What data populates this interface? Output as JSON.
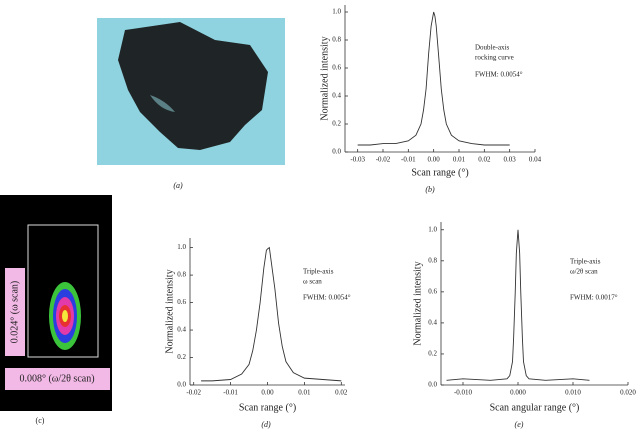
{
  "panels": {
    "a": {
      "label": "(a)"
    },
    "c": {
      "label": "(c)",
      "omega": "0.024° (ω scan)",
      "omega2theta": "0.008° (ω/2θ scan)"
    }
  },
  "chart_data": [
    {
      "type": "line",
      "label": "(b)",
      "xlabel": "Scan range (°)",
      "ylabel": "Normalized intensity",
      "notes": [
        "Double-axis",
        "rocking curve",
        "FWHM: 0.0054°"
      ],
      "color": "#333333",
      "xlim": [
        -0.035,
        0.04
      ],
      "ylim": [
        0,
        1.05
      ],
      "xticks": [
        {
          "value": -0.03,
          "label": "-0.03"
        },
        {
          "value": -0.02,
          "label": "-0.02"
        },
        {
          "value": -0.01,
          "label": "-0.01"
        },
        {
          "value": 0,
          "label": "0.00"
        },
        {
          "value": 0.01,
          "label": "0.01"
        },
        {
          "value": 0.02,
          "label": "0.02"
        },
        {
          "value": 0.03,
          "label": "0.03"
        },
        {
          "value": 0.04,
          "label": "0.04"
        }
      ],
      "yticks": [
        {
          "value": 0,
          "label": "0.0"
        },
        {
          "value": 0.2,
          "label": "0.2"
        },
        {
          "value": 0.4,
          "label": "0.4"
        },
        {
          "value": 0.6,
          "label": "0.6"
        },
        {
          "value": 0.8,
          "label": "0.8"
        },
        {
          "value": 1,
          "label": "1.0"
        }
      ],
      "x": [
        -0.03,
        -0.025,
        -0.02,
        -0.015,
        -0.01,
        -0.007,
        -0.005,
        -0.004,
        -0.003,
        -0.002,
        -0.001,
        0,
        0.0005,
        0.001,
        0.002,
        0.003,
        0.004,
        0.005,
        0.007,
        0.01,
        0.015,
        0.02,
        0.025,
        0.03
      ],
      "values": [
        0.05,
        0.05,
        0.06,
        0.06,
        0.08,
        0.12,
        0.2,
        0.3,
        0.45,
        0.7,
        0.9,
        1.0,
        0.97,
        0.9,
        0.68,
        0.45,
        0.3,
        0.2,
        0.12,
        0.08,
        0.06,
        0.05,
        0.05,
        0.05
      ]
    },
    {
      "type": "line",
      "label": "(d)",
      "xlabel": "Scan range (°)",
      "ylabel": "Normalized intensity",
      "notes": [
        "Triple-axis",
        "ω scan",
        "FWHM: 0.0054°"
      ],
      "color": "#333333",
      "xlim": [
        -0.021,
        0.021
      ],
      "ylim": [
        0,
        1.07
      ],
      "xticks": [
        {
          "value": -0.02,
          "label": "-0.02"
        },
        {
          "value": -0.01,
          "label": "-0.01"
        },
        {
          "value": 0,
          "label": "0.00"
        },
        {
          "value": 0.01,
          "label": "0.01"
        },
        {
          "value": 0.02,
          "label": "0.02"
        }
      ],
      "yticks": [
        {
          "value": 0,
          "label": "0.0"
        },
        {
          "value": 0.2,
          "label": "0.2"
        },
        {
          "value": 0.4,
          "label": "0.4"
        },
        {
          "value": 0.6,
          "label": "0.6"
        },
        {
          "value": 0.8,
          "label": "0.8"
        },
        {
          "value": 1,
          "label": "1.0"
        }
      ],
      "x": [
        -0.018,
        -0.015,
        -0.01,
        -0.007,
        -0.005,
        -0.004,
        -0.003,
        -0.002,
        -0.001,
        -0.0003,
        0,
        0.0005,
        0.001,
        0.002,
        0.003,
        0.004,
        0.005,
        0.007,
        0.01,
        0.015,
        0.02
      ],
      "values": [
        0.03,
        0.03,
        0.04,
        0.08,
        0.15,
        0.25,
        0.4,
        0.6,
        0.85,
        0.98,
        0.99,
        1.0,
        0.9,
        0.7,
        0.45,
        0.28,
        0.17,
        0.09,
        0.05,
        0.04,
        0.03
      ]
    },
    {
      "type": "line",
      "label": "(e)",
      "xlabel": "Scan angular range (°)",
      "ylabel": "Normalized intensity",
      "notes": [
        "Triple-axis",
        "ω/2θ scan",
        "FWHM: 0.0017°"
      ],
      "color": "#333333",
      "xlim": [
        -0.014,
        0.02
      ],
      "ylim": [
        0,
        1.05
      ],
      "xticks": [
        {
          "value": -0.01,
          "label": "-0.010"
        },
        {
          "value": 0,
          "label": "0.000"
        },
        {
          "value": 0.01,
          "label": "0.010"
        },
        {
          "value": 0.02,
          "label": "0.020"
        }
      ],
      "yticks": [
        {
          "value": 0,
          "label": "0.0"
        },
        {
          "value": 0.2,
          "label": "0.2"
        },
        {
          "value": 0.4,
          "label": "0.4"
        },
        {
          "value": 0.6,
          "label": "0.6"
        },
        {
          "value": 0.8,
          "label": "0.8"
        },
        {
          "value": 1,
          "label": "1.0"
        }
      ],
      "x": [
        -0.013,
        -0.01,
        -0.005,
        -0.002,
        -0.0015,
        -0.001,
        -0.0008,
        -0.0005,
        -0.0003,
        0,
        0.0003,
        0.0005,
        0.0008,
        0.001,
        0.0015,
        0.002,
        0.005,
        0.01,
        0.013
      ],
      "values": [
        0.03,
        0.04,
        0.03,
        0.04,
        0.06,
        0.15,
        0.3,
        0.6,
        0.85,
        1.0,
        0.85,
        0.6,
        0.3,
        0.15,
        0.06,
        0.04,
        0.03,
        0.04,
        0.03
      ]
    }
  ]
}
